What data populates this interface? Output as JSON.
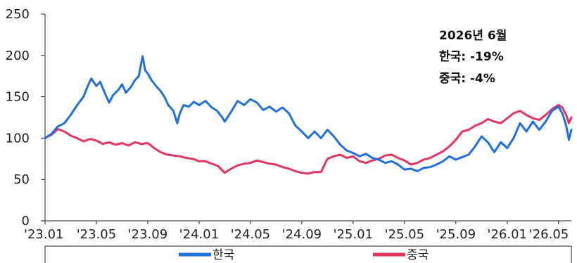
{
  "chart_data": {
    "type": "line",
    "title": "",
    "xlabel": "",
    "ylabel": "",
    "ylim": [
      0,
      250
    ],
    "y_ticks": [
      0,
      50,
      100,
      150,
      200,
      250
    ],
    "x_tick_labels": [
      "'23.01",
      "'23.05",
      "'23.09",
      "'24.01",
      "'24.05",
      "'24.09",
      "'25.01",
      "'25.05",
      "'25.09",
      "'26.01",
      "'26.05"
    ],
    "x_range_months": [
      0,
      41
    ],
    "grid": false,
    "legend_position": "bottom",
    "annotation": [
      "2026년 6월",
      "한국: -19%",
      "중국: -4%"
    ],
    "series": [
      {
        "name": "한국",
        "color": "#1f6fe0",
        "points": [
          [
            0,
            100
          ],
          [
            0.5,
            105
          ],
          [
            1,
            114
          ],
          [
            1.5,
            118
          ],
          [
            2,
            128
          ],
          [
            2.5,
            140
          ],
          [
            3,
            150
          ],
          [
            3.3,
            162
          ],
          [
            3.6,
            172
          ],
          [
            4,
            163
          ],
          [
            4.3,
            168
          ],
          [
            4.7,
            153
          ],
          [
            5,
            143
          ],
          [
            5.3,
            152
          ],
          [
            5.7,
            158
          ],
          [
            6,
            165
          ],
          [
            6.3,
            155
          ],
          [
            6.7,
            162
          ],
          [
            7,
            170
          ],
          [
            7.3,
            175
          ],
          [
            7.6,
            199
          ],
          [
            7.8,
            182
          ],
          [
            8,
            178
          ],
          [
            8.3,
            170
          ],
          [
            8.7,
            162
          ],
          [
            9,
            157
          ],
          [
            9.3,
            150
          ],
          [
            9.6,
            140
          ],
          [
            10,
            133
          ],
          [
            10.3,
            118
          ],
          [
            10.5,
            130
          ],
          [
            10.8,
            140
          ],
          [
            11.2,
            138
          ],
          [
            11.6,
            144
          ],
          [
            12,
            140
          ],
          [
            12.5,
            145
          ],
          [
            13,
            137
          ],
          [
            13.4,
            133
          ],
          [
            13.8,
            125
          ],
          [
            14,
            120
          ],
          [
            14.2,
            125
          ],
          [
            14.5,
            132
          ],
          [
            15,
            145
          ],
          [
            15.5,
            140
          ],
          [
            16,
            147
          ],
          [
            16.5,
            143
          ],
          [
            17,
            134
          ],
          [
            17.5,
            138
          ],
          [
            18,
            132
          ],
          [
            18.5,
            137
          ],
          [
            19,
            130
          ],
          [
            19.5,
            115
          ],
          [
            20,
            108
          ],
          [
            20.5,
            100
          ],
          [
            21,
            108
          ],
          [
            21.5,
            100
          ],
          [
            22,
            110
          ],
          [
            22.5,
            102
          ],
          [
            23,
            92
          ],
          [
            23.5,
            85
          ],
          [
            24,
            82
          ],
          [
            24.5,
            78
          ],
          [
            25,
            81
          ],
          [
            25.5,
            76
          ],
          [
            26,
            74
          ],
          [
            26.5,
            70
          ],
          [
            27,
            72
          ],
          [
            27.5,
            68
          ],
          [
            28,
            62
          ],
          [
            28.5,
            63
          ],
          [
            29,
            60
          ],
          [
            29.5,
            64
          ],
          [
            30,
            65
          ],
          [
            30.5,
            68
          ],
          [
            31,
            72
          ],
          [
            31.5,
            78
          ],
          [
            32,
            74
          ],
          [
            32.5,
            77
          ],
          [
            33,
            80
          ],
          [
            33.5,
            90
          ],
          [
            34,
            102
          ],
          [
            34.5,
            95
          ],
          [
            35,
            83
          ],
          [
            35.5,
            95
          ],
          [
            36,
            88
          ],
          [
            36.5,
            100
          ],
          [
            37,
            118
          ],
          [
            37.5,
            108
          ],
          [
            38,
            120
          ],
          [
            38.5,
            110
          ],
          [
            39,
            120
          ],
          [
            39.5,
            133
          ],
          [
            40,
            138
          ],
          [
            40.3,
            130
          ],
          [
            40.6,
            115
          ],
          [
            40.8,
            98
          ],
          [
            41,
            110
          ]
        ]
      },
      {
        "name": "중국",
        "color": "#e23560",
        "points": [
          [
            0,
            100
          ],
          [
            0.5,
            104
          ],
          [
            1,
            111
          ],
          [
            1.5,
            108
          ],
          [
            2,
            103
          ],
          [
            2.5,
            100
          ],
          [
            3,
            96
          ],
          [
            3.5,
            99
          ],
          [
            4,
            97
          ],
          [
            4.5,
            93
          ],
          [
            5,
            95
          ],
          [
            5.5,
            92
          ],
          [
            6,
            94
          ],
          [
            6.5,
            91
          ],
          [
            7,
            95
          ],
          [
            7.5,
            93
          ],
          [
            8,
            94
          ],
          [
            8.5,
            88
          ],
          [
            9,
            83
          ],
          [
            9.5,
            80
          ],
          [
            10,
            79
          ],
          [
            10.5,
            78
          ],
          [
            11,
            76
          ],
          [
            11.5,
            75
          ],
          [
            12,
            72
          ],
          [
            12.5,
            72
          ],
          [
            13,
            69
          ],
          [
            13.5,
            66
          ],
          [
            14,
            58
          ],
          [
            14.5,
            63
          ],
          [
            15,
            67
          ],
          [
            15.5,
            69
          ],
          [
            16,
            70
          ],
          [
            16.5,
            73
          ],
          [
            17,
            71
          ],
          [
            17.5,
            69
          ],
          [
            18,
            68
          ],
          [
            18.5,
            65
          ],
          [
            19,
            63
          ],
          [
            19.5,
            60
          ],
          [
            20,
            58
          ],
          [
            20.5,
            57
          ],
          [
            21,
            59
          ],
          [
            21.5,
            59
          ],
          [
            22,
            75
          ],
          [
            22.5,
            78
          ],
          [
            23,
            80
          ],
          [
            23.5,
            76
          ],
          [
            24,
            78
          ],
          [
            24.5,
            72
          ],
          [
            25,
            70
          ],
          [
            25.5,
            73
          ],
          [
            26,
            75
          ],
          [
            26.5,
            79
          ],
          [
            27,
            80
          ],
          [
            27.5,
            76
          ],
          [
            28,
            73
          ],
          [
            28.5,
            68
          ],
          [
            29,
            70
          ],
          [
            29.5,
            74
          ],
          [
            30,
            76
          ],
          [
            30.5,
            80
          ],
          [
            31,
            84
          ],
          [
            31.5,
            90
          ],
          [
            32,
            98
          ],
          [
            32.5,
            108
          ],
          [
            33,
            110
          ],
          [
            33.5,
            115
          ],
          [
            34,
            118
          ],
          [
            34.5,
            123
          ],
          [
            35,
            120
          ],
          [
            35.5,
            118
          ],
          [
            36,
            124
          ],
          [
            36.5,
            130
          ],
          [
            37,
            133
          ],
          [
            37.5,
            128
          ],
          [
            38,
            124
          ],
          [
            38.5,
            122
          ],
          [
            39,
            128
          ],
          [
            39.5,
            135
          ],
          [
            40,
            140
          ],
          [
            40.3,
            137
          ],
          [
            40.6,
            128
          ],
          [
            40.8,
            118
          ],
          [
            41,
            125
          ]
        ]
      }
    ]
  }
}
